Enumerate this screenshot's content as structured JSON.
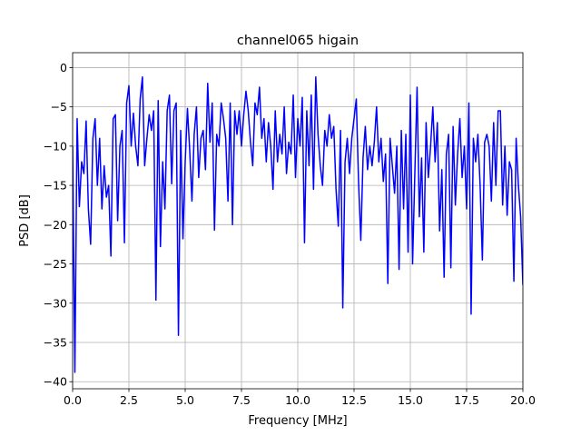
{
  "chart_data": {
    "type": "line",
    "title": "channel065 higain",
    "x_label": "Frequency [MHz]",
    "y_label": "PSD [dB]",
    "xlim": [
      0,
      20
    ],
    "ylim": [
      -40.9,
      1.9
    ],
    "grid": true,
    "xticks": [
      {
        "value": 0,
        "label": "0.0"
      },
      2.5,
      {
        "value": 5,
        "label": "5.0"
      },
      7.5,
      {
        "value": 10,
        "label": "10.0"
      },
      12.5,
      {
        "value": 15,
        "label": "15.0"
      },
      17.5,
      {
        "value": 20,
        "label": "20.0"
      }
    ],
    "yticks": [
      {
        "value": -40,
        "label": "−40"
      },
      {
        "value": -35,
        "label": "−35"
      },
      {
        "value": -30,
        "label": "−30"
      },
      {
        "value": -25,
        "label": "−25"
      },
      {
        "value": -20,
        "label": "−20"
      },
      {
        "value": -15,
        "label": "−15"
      },
      {
        "value": -10,
        "label": "−10"
      },
      {
        "value": -5,
        "label": "−5"
      },
      0
    ],
    "x": [
      0,
      0.1,
      0.2,
      0.3,
      0.4,
      0.5,
      0.6,
      0.7,
      0.8,
      0.9,
      1,
      1.1,
      1.2,
      1.3,
      1.4,
      1.5,
      1.6,
      1.7,
      1.8,
      1.9,
      2,
      2.1,
      2.2,
      2.3,
      2.4,
      2.5,
      2.6,
      2.7,
      2.8,
      2.9,
      3,
      3.1,
      3.2,
      3.3,
      3.4,
      3.5,
      3.6,
      3.7,
      3.8,
      3.9,
      4,
      4.1,
      4.2,
      4.3,
      4.4,
      4.5,
      4.6,
      4.7,
      4.8,
      4.9,
      5,
      5.1,
      5.2,
      5.3,
      5.4,
      5.5,
      5.6,
      5.7,
      5.8,
      5.9,
      6,
      6.1,
      6.2,
      6.3,
      6.4,
      6.5,
      6.6,
      6.7,
      6.8,
      6.9,
      7,
      7.1,
      7.2,
      7.3,
      7.4,
      7.5,
      7.6,
      7.7,
      7.8,
      7.9,
      8,
      8.1,
      8.2,
      8.3,
      8.4,
      8.5,
      8.6,
      8.7,
      8.8,
      8.9,
      9,
      9.1,
      9.2,
      9.3,
      9.4,
      9.5,
      9.6,
      9.7,
      9.8,
      9.9,
      10,
      10.1,
      10.2,
      10.3,
      10.4,
      10.5,
      10.6,
      10.7,
      10.8,
      10.9,
      11,
      11.1,
      11.2,
      11.3,
      11.4,
      11.5,
      11.6,
      11.7,
      11.8,
      11.9,
      12,
      12.1,
      12.2,
      12.3,
      12.4,
      12.5,
      12.6,
      12.7,
      12.8,
      12.9,
      13,
      13.1,
      13.2,
      13.3,
      13.4,
      13.5,
      13.6,
      13.7,
      13.8,
      13.9,
      14,
      14.1,
      14.2,
      14.3,
      14.4,
      14.5,
      14.6,
      14.7,
      14.8,
      14.9,
      15,
      15.1,
      15.2,
      15.3,
      15.4,
      15.5,
      15.6,
      15.7,
      15.8,
      15.9,
      16,
      16.1,
      16.2,
      16.3,
      16.4,
      16.5,
      16.6,
      16.7,
      16.8,
      16.9,
      17,
      17.1,
      17.2,
      17.3,
      17.4,
      17.5,
      17.6,
      17.7,
      17.8,
      17.9,
      18,
      18.1,
      18.2,
      18.3,
      18.4,
      18.5,
      18.6,
      18.7,
      18.8,
      18.9,
      19,
      19.1,
      19.2,
      19.3,
      19.4,
      19.5,
      19.6,
      19.7,
      19.8,
      19.9,
      20
    ],
    "series": [
      {
        "name": "PSD",
        "color": "#0000ff",
        "values": [
          -10,
          -38.8,
          -6.5,
          -17.7,
          -12,
          -13.5,
          -6.8,
          -18,
          -22.5,
          -9,
          -6.5,
          -15,
          -9,
          -18,
          -12.5,
          -16.5,
          -15,
          -24,
          -6.5,
          -6,
          -19.5,
          -10,
          -8,
          -22.3,
          -4.5,
          -2.3,
          -10,
          -5.8,
          -10,
          -12.5,
          -4,
          -1.2,
          -12.5,
          -9,
          -6,
          -8,
          -5.5,
          -29.6,
          -4.2,
          -22.8,
          -12,
          -18,
          -5.5,
          -3.5,
          -14.8,
          -5.5,
          -4.5,
          -34.1,
          -8,
          -21.8,
          -12,
          -5.2,
          -10.5,
          -17,
          -8.5,
          -5,
          -14,
          -9,
          -8,
          -13,
          -2,
          -9.5,
          -4.5,
          -20.7,
          -8.5,
          -10,
          -4.5,
          -6.5,
          -9,
          -17,
          -4.5,
          -20,
          -5.5,
          -8.5,
          -5.5,
          -10,
          -6,
          -3,
          -5.5,
          -9.5,
          -12.5,
          -4.5,
          -6,
          -2.5,
          -9,
          -6.5,
          -12,
          -7,
          -10,
          -15.5,
          -5.5,
          -12,
          -8.5,
          -11,
          -5,
          -13.5,
          -9.5,
          -11,
          -3.5,
          -14,
          -6.5,
          -10,
          -3.8,
          -22.3,
          -5.5,
          -12.5,
          -3.5,
          -15.5,
          -1.2,
          -8.5,
          -12.5,
          -15,
          -8,
          -10,
          -6,
          -9,
          -7.5,
          -15.5,
          -20.2,
          -8,
          -30.6,
          -12,
          -9,
          -13.5,
          -9,
          -6.5,
          -4,
          -14.5,
          -22,
          -11.5,
          -7.5,
          -13,
          -10,
          -12.5,
          -9.5,
          -5,
          -12,
          -9,
          -14.5,
          -11,
          -27.5,
          -9,
          -12.5,
          -16,
          -10,
          -25.7,
          -8,
          -18,
          -8.5,
          -23.5,
          -3.5,
          -25,
          -13.5,
          -2.5,
          -19,
          -11.5,
          -23.5,
          -7,
          -14,
          -10,
          -5,
          -12,
          -7,
          -20.8,
          -13,
          -26.7,
          -11,
          -8.5,
          -25.5,
          -7.5,
          -17.5,
          -11,
          -6.5,
          -14,
          -10,
          -18,
          -4.5,
          -31.4,
          -9,
          -12,
          -8.5,
          -15,
          -24.5,
          -9.5,
          -8.5,
          -10,
          -17,
          -7,
          -15,
          -5.5,
          -5.5,
          -17.5,
          -10,
          -18.8,
          -12,
          -13,
          -27.2,
          -9,
          -15,
          -19,
          -27.7
        ]
      }
    ]
  }
}
